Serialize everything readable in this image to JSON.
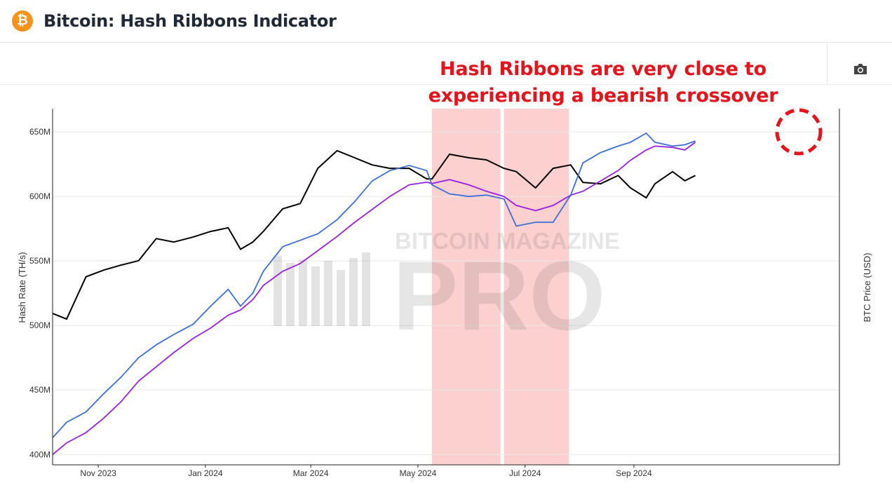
{
  "header": {
    "title": "Bitcoin: Hash Ribbons Indicator",
    "logo_glyph": "₿"
  },
  "toolbar": {
    "camera_icon": "camera-icon"
  },
  "annotation": {
    "line1": "Hash Ribbons are very close to",
    "line2": "experiencing a bearish crossover"
  },
  "watermark": {
    "line1": "BITCOIN MAGAZINE",
    "line2": "PRO"
  },
  "colors": {
    "hash_30": "#3b6fd8",
    "hash_60": "#9b1fe0",
    "price": "#000000",
    "capitulation": "#fdd0d0",
    "annotation": "#e3141b",
    "bitcoin": "#f7931a"
  },
  "chart_data": {
    "type": "line",
    "ylabel": "Hash Rate (TH/s)",
    "y2label": "BTC Price (USD)",
    "ylim": [
      392000000,
      668000000
    ],
    "yticks": [
      {
        "v": 400000000,
        "label": "400M"
      },
      {
        "v": 450000000,
        "label": "450M"
      },
      {
        "v": 500000000,
        "label": "500M"
      },
      {
        "v": 550000000,
        "label": "550M"
      },
      {
        "v": 600000000,
        "label": "600M"
      },
      {
        "v": 650000000,
        "label": "650M"
      }
    ],
    "y2scale": "log",
    "y2lim": [
      10700,
      94500
    ],
    "xlim": [
      "2023-10-06",
      "2024-12-27"
    ],
    "xticks": [
      {
        "v": "2023-11-01",
        "label": "Nov 2023"
      },
      {
        "v": "2024-01-01",
        "label": "Jan 2024"
      },
      {
        "v": "2024-03-01",
        "label": "Mar 2024"
      },
      {
        "v": "2024-05-01",
        "label": "May 2024"
      },
      {
        "v": "2024-07-01",
        "label": "Jul 2024"
      },
      {
        "v": "2024-09-01",
        "label": "Sep 2024"
      }
    ],
    "grid": true,
    "x": [
      "2023-10-06",
      "2023-10-14",
      "2023-10-25",
      "2023-11-04",
      "2023-11-14",
      "2023-11-24",
      "2023-12-04",
      "2023-12-14",
      "2023-12-25",
      "2024-01-04",
      "2024-01-14",
      "2024-01-21",
      "2024-01-28",
      "2024-02-03",
      "2024-02-14",
      "2024-02-24",
      "2024-03-05",
      "2024-03-16",
      "2024-03-26",
      "2024-04-05",
      "2024-04-15",
      "2024-04-26",
      "2024-05-06",
      "2024-05-09",
      "2024-05-19",
      "2024-05-30",
      "2024-06-09",
      "2024-06-19",
      "2024-06-26",
      "2024-07-07",
      "2024-07-17",
      "2024-07-27",
      "2024-08-03",
      "2024-08-13",
      "2024-08-23",
      "2024-08-30",
      "2024-09-08",
      "2024-09-13",
      "2024-09-23",
      "2024-09-30",
      "2024-10-06"
    ],
    "series": [
      {
        "key": "hash_30",
        "axis": "y",
        "values": [
          413,
          425,
          433,
          447,
          460,
          475,
          485,
          493,
          501,
          515,
          528,
          515,
          525,
          542,
          561,
          566,
          571,
          582,
          596,
          612,
          620,
          624,
          620,
          609,
          602,
          600,
          601,
          598,
          577,
          580,
          580,
          601,
          626,
          634,
          639,
          642,
          649,
          642,
          639,
          640,
          643
        ],
        "unit": "M"
      },
      {
        "key": "hash_60",
        "axis": "y",
        "values": [
          400,
          409,
          417,
          428,
          441,
          457,
          468,
          479,
          490,
          498,
          508,
          512,
          520,
          531,
          542,
          548,
          558,
          569,
          580,
          590,
          600,
          609,
          611,
          610,
          613,
          609,
          604,
          600,
          593,
          589,
          593,
          601,
          604,
          612,
          620,
          628,
          636,
          639,
          638,
          636,
          642
        ],
        "unit": "M"
      },
      {
        "key": "price",
        "axis": "y2",
        "values": [
          27000,
          26100,
          33800,
          35200,
          36300,
          37300,
          42700,
          41800,
          43100,
          44600,
          45600,
          40000,
          41800,
          44600,
          51200,
          52900,
          65600,
          73100,
          70000,
          67000,
          65600,
          65600,
          61500,
          61500,
          71500,
          70000,
          69100,
          65600,
          64300,
          58200,
          65600,
          67000,
          60200,
          59700,
          62800,
          58200,
          54800,
          59700,
          64300,
          60800,
          62800
        ]
      }
    ],
    "shaded_regions": [
      [
        "2024-05-09",
        "2024-06-17"
      ],
      [
        "2024-06-19",
        "2024-07-26"
      ]
    ]
  }
}
